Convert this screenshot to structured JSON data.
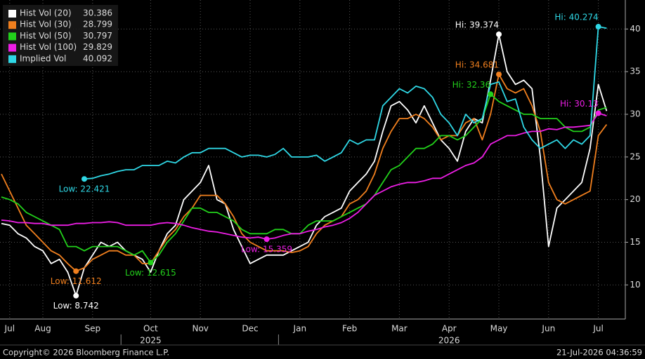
{
  "chart_data": {
    "type": "line",
    "background": "#000000",
    "grid": true,
    "legend": "top-left",
    "ylim": [
      6,
      43.4
    ],
    "yticks": [
      10,
      15,
      20,
      25,
      30,
      35,
      40
    ],
    "categories": [
      null,
      "Jul",
      null,
      null,
      null,
      "Aug",
      null,
      null,
      null,
      null,
      null,
      "Sep",
      null,
      null,
      null,
      null,
      null,
      null,
      "Oct",
      null,
      null,
      null,
      null,
      null,
      "Nov",
      null,
      null,
      null,
      null,
      null,
      "Dec",
      null,
      null,
      null,
      null,
      null,
      "Jan",
      null,
      null,
      null,
      null,
      null,
      "Feb",
      null,
      null,
      null,
      null,
      null,
      "Mar",
      null,
      null,
      null,
      null,
      null,
      "Apr",
      null,
      null,
      null,
      null,
      null,
      "May",
      null,
      null,
      null,
      null,
      null,
      "Jun",
      null,
      null,
      null,
      null,
      null,
      "Jul",
      null
    ],
    "x_year_labels": [
      "2025",
      "2026"
    ],
    "source": "Copyright© 2026 Bloomberg Finance L.P.",
    "timestamp": "21-Jul-2026 04:36:59",
    "series": [
      {
        "name": "Hist Vol (20)",
        "color": "#ffffff",
        "values": [
          17.2,
          17,
          16,
          15.5,
          14.5,
          14,
          12.5,
          13,
          11.5,
          8.742,
          12,
          13.5,
          15,
          14.5,
          15,
          14,
          13.5,
          13,
          11.5,
          14,
          16,
          17,
          20,
          21,
          22,
          24,
          20,
          19.5,
          16.5,
          14.5,
          12.5,
          13,
          13.5,
          13.5,
          13.5,
          14,
          14.5,
          15,
          17,
          18,
          18.5,
          19,
          21,
          22,
          23,
          24.5,
          28,
          31,
          31.5,
          30.5,
          29,
          31,
          29,
          27,
          26,
          24.5,
          28,
          29.5,
          29,
          34,
          39.374,
          35,
          33.5,
          34,
          33,
          25,
          14.5,
          19,
          20,
          21,
          22,
          26,
          33.5,
          30.386
        ],
        "annotations": [
          {
            "label": "Hi: 39.374",
            "value": 39.374
          },
          {
            "label": "Low: 8.742",
            "value": 8.742
          }
        ]
      },
      {
        "name": "Hist Vol (30)",
        "color": "#f07f1e",
        "values": [
          23,
          21,
          19,
          17,
          16,
          15,
          14,
          13.5,
          12.5,
          11.612,
          12,
          13,
          13.5,
          14,
          14,
          13.5,
          13.5,
          12.5,
          12.5,
          14,
          15.5,
          16.5,
          18,
          19,
          20.5,
          20.5,
          20.5,
          19.5,
          18,
          16,
          15,
          14.5,
          14,
          14,
          14,
          13.8,
          14,
          14.5,
          16,
          17,
          17.5,
          18,
          19.5,
          20,
          21,
          23,
          26,
          28,
          29.5,
          29.5,
          30,
          29.5,
          28.5,
          27,
          27.5,
          27.5,
          29,
          29.5,
          27,
          30,
          34.681,
          33,
          32.5,
          33,
          31,
          28,
          22,
          20,
          19.5,
          20,
          20.5,
          21,
          27.5,
          28.799
        ],
        "annotations": [
          {
            "label": "Hi: 34.681",
            "value": 34.681
          },
          {
            "label": "Low: 11.612",
            "value": 11.612
          }
        ]
      },
      {
        "name": "Hist Vol (50)",
        "color": "#22d11b",
        "values": [
          20.3,
          20,
          19.5,
          18.5,
          18,
          17.5,
          17,
          16.5,
          14.5,
          14.5,
          14,
          14.5,
          14.5,
          14.5,
          14.5,
          14,
          13.5,
          14,
          12.615,
          13.5,
          15,
          16,
          17.5,
          19,
          19,
          18.5,
          18.5,
          18,
          17.5,
          16.5,
          16,
          16,
          16,
          16.5,
          16.5,
          16,
          16,
          17,
          17.5,
          17.5,
          17.5,
          18,
          18.5,
          19,
          19.5,
          20.5,
          22,
          23.5,
          24,
          25,
          26,
          26,
          26.5,
          27.5,
          27.5,
          27,
          27.5,
          28.5,
          29.5,
          32.36,
          31.5,
          31,
          30.5,
          30,
          30,
          29.5,
          29.5,
          29.5,
          28.5,
          28,
          28,
          28.5,
          30.5,
          30.797
        ],
        "annotations": [
          {
            "label": "Hi: 32.36",
            "value": 32.36
          },
          {
            "label": "Low: 12.615",
            "value": 12.615
          }
        ]
      },
      {
        "name": "Hist Vol (100)",
        "color": "#ee1ee6",
        "values": [
          17.6,
          17.5,
          17.3,
          17.3,
          17.2,
          17.2,
          17,
          17,
          17,
          17.2,
          17.2,
          17.3,
          17.3,
          17.4,
          17.3,
          17,
          17,
          17,
          17,
          17.2,
          17.3,
          17.2,
          17,
          16.7,
          16.5,
          16.3,
          16.2,
          16,
          15.8,
          15.6,
          15.5,
          15.6,
          15.359,
          15.5,
          15.8,
          16,
          16,
          16.3,
          16.5,
          16.8,
          17,
          17.3,
          17.8,
          18.5,
          19.5,
          20.5,
          21,
          21.5,
          21.8,
          22,
          22,
          22.2,
          22.5,
          22.5,
          23,
          23.5,
          24,
          24.3,
          25,
          26.5,
          27,
          27.5,
          27.5,
          27.8,
          28,
          28,
          28.3,
          28.2,
          28.5,
          28.5,
          28.6,
          28.7,
          30.13,
          29.829
        ],
        "annotations": [
          {
            "label": "Hi: 30.13",
            "value": 30.13
          },
          {
            "label": "Low: 15.359",
            "value": 15.359
          }
        ]
      },
      {
        "name": "Implied Vol",
        "color": "#2fd8e6",
        "values": [
          null,
          null,
          null,
          null,
          null,
          null,
          null,
          null,
          null,
          null,
          22.421,
          22.5,
          22.8,
          23,
          23.3,
          23.5,
          23.5,
          24,
          24,
          24,
          24.5,
          24.3,
          25,
          25.5,
          25.5,
          26,
          26,
          26,
          25.5,
          25,
          25.2,
          25.2,
          25,
          25.3,
          26,
          25,
          25,
          25,
          25.2,
          24.5,
          25,
          25.5,
          27,
          26.5,
          27,
          27,
          31,
          32,
          33,
          32.5,
          33.3,
          33,
          32,
          30,
          29,
          27.5,
          30,
          29,
          29.5,
          33.5,
          33.8,
          31.5,
          31.8,
          28.5,
          27,
          26,
          26.5,
          27,
          26,
          27,
          26.5,
          27.5,
          40.274,
          40.092
        ],
        "annotations": [
          {
            "label": "Hi: 40.274",
            "value": 40.274
          },
          {
            "label": "Low: 22.421",
            "value": 22.421
          }
        ]
      }
    ]
  }
}
